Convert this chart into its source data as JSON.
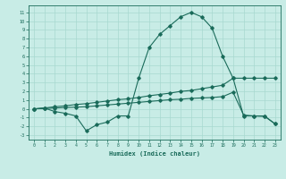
{
  "title": "",
  "xlabel": "Humidex (Indice chaleur)",
  "ylabel": "",
  "bg_color": "#c8ece6",
  "line_color": "#1a6b5a",
  "grid_color": "#a8d8d0",
  "xlim": [
    -0.5,
    23.5
  ],
  "ylim": [
    -3.5,
    11.8
  ],
  "xticks": [
    0,
    1,
    2,
    3,
    4,
    5,
    6,
    7,
    8,
    9,
    10,
    11,
    12,
    13,
    14,
    15,
    16,
    17,
    18,
    19,
    20,
    21,
    22,
    23
  ],
  "yticks": [
    -3,
    -2,
    -1,
    0,
    1,
    2,
    3,
    4,
    5,
    6,
    7,
    8,
    9,
    10,
    11
  ],
  "line1_x": [
    0,
    1,
    2,
    3,
    4,
    5,
    6,
    7,
    8,
    9,
    10,
    11,
    12,
    13,
    14,
    15,
    16,
    17,
    18,
    19,
    20,
    21,
    22,
    23
  ],
  "line1_y": [
    0.0,
    0.1,
    -0.3,
    -0.5,
    -0.8,
    -2.5,
    -1.8,
    -1.5,
    -0.8,
    -0.8,
    3.5,
    7.0,
    8.5,
    9.5,
    10.5,
    11.0,
    10.5,
    9.2,
    6.0,
    3.5,
    -0.8,
    -0.8,
    -0.8,
    -1.7
  ],
  "line2_x": [
    0,
    1,
    2,
    3,
    4,
    5,
    6,
    7,
    8,
    9,
    10,
    11,
    12,
    13,
    14,
    15,
    16,
    17,
    18,
    19,
    20,
    21,
    22,
    23
  ],
  "line2_y": [
    0.0,
    0.1,
    0.25,
    0.35,
    0.5,
    0.6,
    0.75,
    0.9,
    1.05,
    1.15,
    1.3,
    1.5,
    1.65,
    1.8,
    2.0,
    2.1,
    2.3,
    2.5,
    2.7,
    3.5,
    3.5,
    3.5,
    3.5,
    3.5
  ],
  "line3_x": [
    0,
    1,
    2,
    3,
    4,
    5,
    6,
    7,
    8,
    9,
    10,
    11,
    12,
    13,
    14,
    15,
    16,
    17,
    18,
    19,
    20,
    21,
    22,
    23
  ],
  "line3_y": [
    0.0,
    0.05,
    0.1,
    0.15,
    0.2,
    0.25,
    0.35,
    0.45,
    0.55,
    0.65,
    0.75,
    0.85,
    0.95,
    1.05,
    1.1,
    1.2,
    1.25,
    1.3,
    1.4,
    1.9,
    -0.7,
    -0.8,
    -0.85,
    -1.7
  ]
}
